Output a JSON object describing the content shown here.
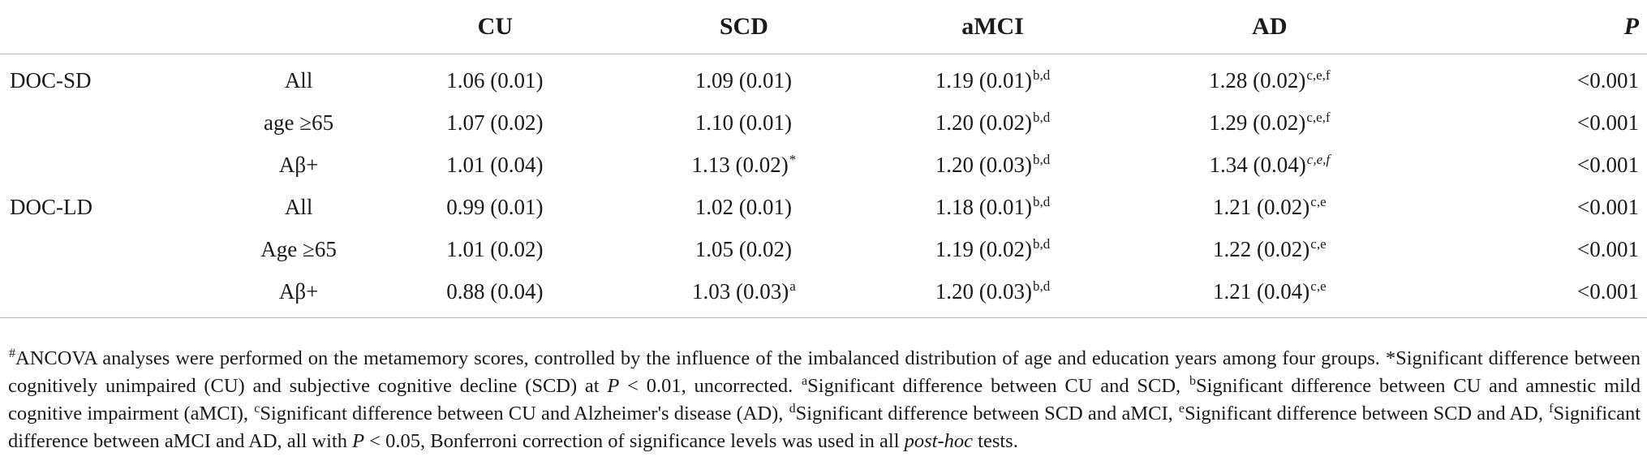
{
  "table": {
    "headers": {
      "measure": "",
      "subgroup": "",
      "cu": "CU",
      "scd": "SCD",
      "amci": "aMCI",
      "ad": "AD",
      "p": "P"
    },
    "rows": [
      {
        "measure": "DOC-SD",
        "subgroup": "All",
        "cu": "1.06 (0.01)",
        "cu_sup": "",
        "scd": "1.09 (0.01)",
        "scd_sup": "",
        "amci": "1.19 (0.01)",
        "amci_sup": "b,d",
        "ad": "1.28 (0.02)",
        "ad_sup": "c,e,f",
        "p": "<0.001"
      },
      {
        "measure": "",
        "subgroup": "age ≥65",
        "cu": "1.07 (0.02)",
        "cu_sup": "",
        "scd": "1.10 (0.01)",
        "scd_sup": "",
        "amci": "1.20 (0.02)",
        "amci_sup": "b,d",
        "ad": "1.29 (0.02)",
        "ad_sup": "c,e,f",
        "p": "<0.001"
      },
      {
        "measure": "",
        "subgroup": "Aβ+",
        "cu": "1.01 (0.04)",
        "cu_sup": "",
        "scd": "1.13 (0.02)",
        "scd_sup": "*",
        "amci": "1.20 (0.03)",
        "amci_sup": "b,d",
        "ad": "1.34 (0.04)",
        "ad_sup": "c,e,f",
        "p": "<0.001"
      },
      {
        "measure": "DOC-LD",
        "subgroup": "All",
        "cu": "0.99 (0.01)",
        "cu_sup": "",
        "scd": "1.02 (0.01)",
        "scd_sup": "",
        "amci": "1.18 (0.01)",
        "amci_sup": "b,d",
        "ad": "1.21 (0.02)",
        "ad_sup": "c,e",
        "p": "<0.001"
      },
      {
        "measure": "",
        "subgroup": "Age ≥65",
        "cu": "1.01 (0.02)",
        "cu_sup": "",
        "scd": "1.05 (0.02)",
        "scd_sup": "",
        "amci": "1.19 (0.02)",
        "amci_sup": "b,d",
        "ad": "1.22 (0.02)",
        "ad_sup": "c,e",
        "p": "<0.001"
      },
      {
        "measure": "",
        "subgroup": "Aβ+",
        "cu": "0.88 (0.04)",
        "cu_sup": "",
        "scd": "1.03 (0.03)",
        "scd_sup": "a",
        "amci": "1.20 (0.03)",
        "amci_sup": "b,d",
        "ad": "1.21 (0.04)",
        "ad_sup": "c,e",
        "p": "<0.001"
      }
    ]
  },
  "footnote": {
    "mark_hash": "#",
    "t1": "ANCOVA analyses were performed on the metamemory scores, controlled by the influence of the imbalanced distribution of age and education years among four groups. *Significant difference between cognitively unimpaired (CU) and subjective cognitive decline (SCD) at ",
    "p_symbol": "P",
    "t2": " < 0.01, uncorrected. ",
    "mark_a": "a",
    "t3": "Significant difference between CU and SCD, ",
    "mark_b": "b",
    "t4": "Significant difference between CU and amnestic mild cognitive impairment (aMCI), ",
    "mark_c": "c",
    "t5": "Significant difference between CU and Alzheimer's disease (AD), ",
    "mark_d": "d",
    "t6": "Significant difference between SCD and aMCI, ",
    "mark_e": "e",
    "t7": "Significant difference between SCD and AD, ",
    "mark_f": "f",
    "t8": "Significant difference between aMCI and AD, all with ",
    "p_symbol2": "P",
    "t9": " < 0.05, Bonferroni correction of significance levels was used in all ",
    "posthoc": "post-hoc",
    "t10": " tests."
  }
}
